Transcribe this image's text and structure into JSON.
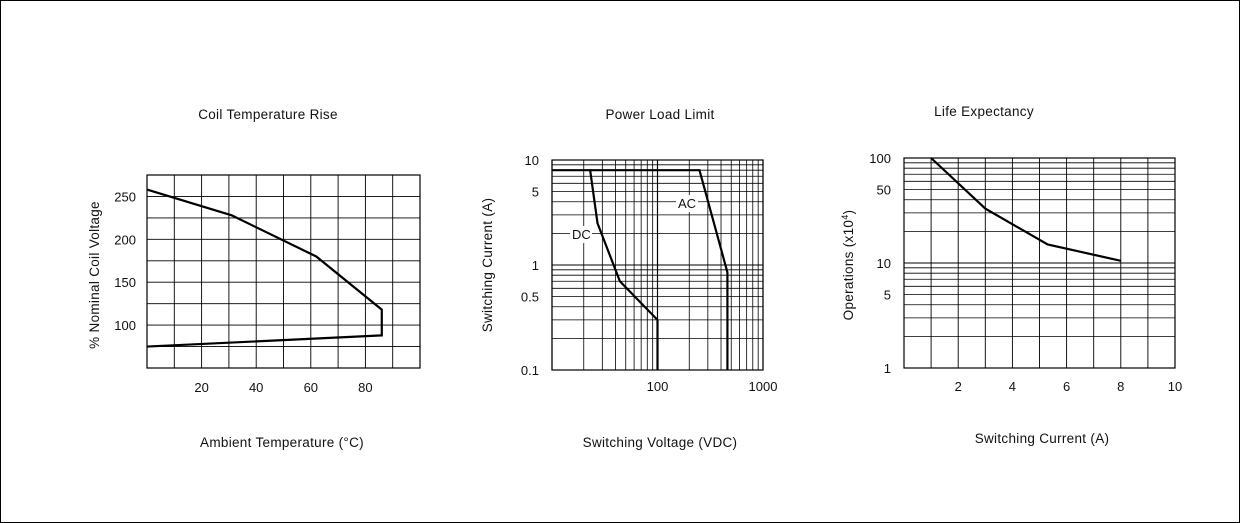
{
  "chart_data": [
    {
      "type": "line",
      "title": "Coil Temperature Rise",
      "xlabel": "Ambient Temperature (°C)",
      "ylabel": "% Nominal Coil Voltage",
      "xlim": [
        0,
        100
      ],
      "ylim": [
        50,
        275
      ],
      "x_ticks": [
        20,
        40,
        60,
        80
      ],
      "y_ticks": [
        100,
        150,
        200,
        250
      ],
      "x_grid": [
        10,
        20,
        30,
        40,
        50,
        60,
        70,
        80,
        90
      ],
      "y_grid": [
        75,
        100,
        125,
        150,
        175,
        200,
        225,
        250
      ],
      "series": [
        {
          "x": [
            0,
            31,
            62,
            86,
            86,
            0
          ],
          "y": [
            258,
            228,
            180,
            118,
            88,
            75
          ]
        }
      ]
    },
    {
      "type": "line",
      "title": "Power Load Limit",
      "xlabel": "Switching Voltage (VDC)",
      "ylabel": "Switching Current (A)",
      "x_scale": "log",
      "y_scale": "log",
      "xlim": [
        10,
        1000
      ],
      "ylim": [
        0.1,
        10
      ],
      "x_ticks": [
        "100",
        "1000"
      ],
      "y_ticks": [
        "0.1",
        "0.5",
        "1",
        "5",
        "10"
      ],
      "x_tick_values": [
        100,
        1000
      ],
      "y_tick_values": [
        0.1,
        0.5,
        1,
        5,
        10
      ],
      "annotations": [
        "DC",
        "AC"
      ],
      "series": [
        {
          "name": "DC",
          "x": [
            10,
            23,
            27,
            44,
            100,
            100
          ],
          "y": [
            8,
            8,
            2.5,
            0.7,
            0.3,
            0.1
          ]
        },
        {
          "name": "AC",
          "x": [
            23,
            250,
            460,
            460
          ],
          "y": [
            8,
            8,
            0.85,
            0.1
          ]
        }
      ]
    },
    {
      "type": "line",
      "title": "Life Expectancy",
      "xlabel": "Switching Current (A)",
      "ylabel_base": "Operations (x10",
      "ylabel_exp": "4",
      "ylabel_tail": ")",
      "y_scale": "log",
      "xlim": [
        0,
        10
      ],
      "ylim": [
        1,
        100
      ],
      "x_ticks": [
        2,
        4,
        6,
        8,
        10
      ],
      "y_ticks": [
        "1",
        "5",
        "10",
        "50",
        "100"
      ],
      "y_tick_values": [
        1,
        5,
        10,
        50,
        100
      ],
      "series": [
        {
          "x": [
            1,
            3,
            5.3,
            8
          ],
          "y": [
            100,
            33,
            15,
            10.5
          ]
        }
      ]
    }
  ]
}
